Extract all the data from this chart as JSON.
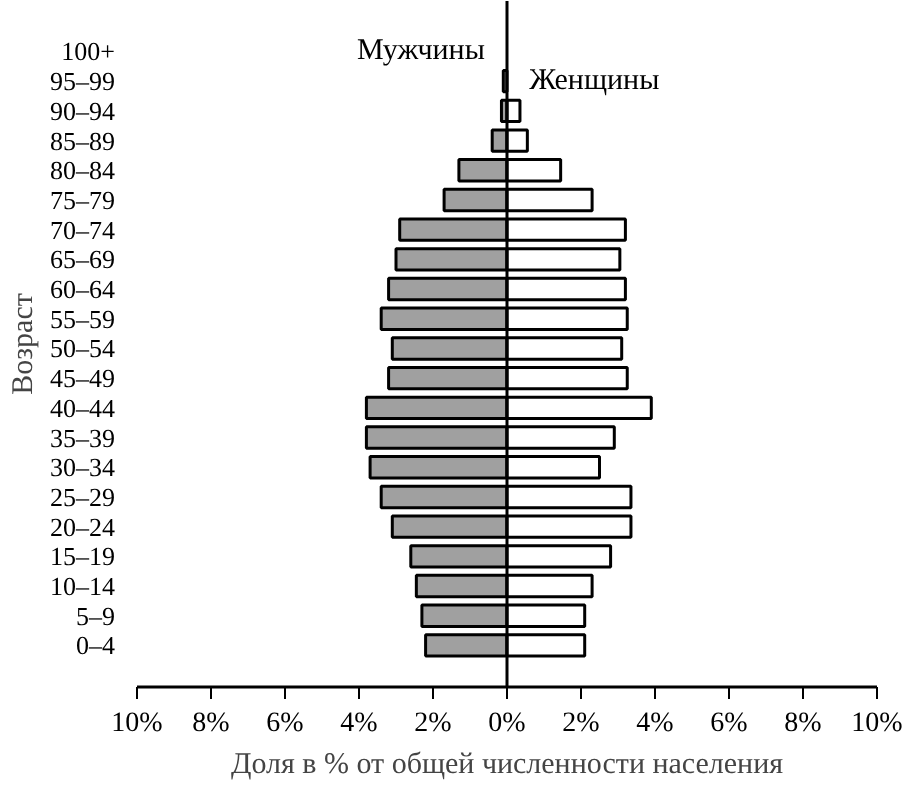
{
  "chart_data": {
    "type": "bar",
    "orientation": "horizontal",
    "stacked": true,
    "xlabel": "Доля в % от общей численности населения",
    "ylabel": "Возраст",
    "categories": [
      "100+",
      "95–99",
      "90–94",
      "85–89",
      "80–84",
      "75–79",
      "70–74",
      "65–69",
      "60–64",
      "55–59",
      "50–54",
      "45–49",
      "40–44",
      "35–39",
      "30–34",
      "25–29",
      "20–24",
      "15–19",
      "10–14",
      "5–9",
      "0–4"
    ],
    "series": [
      {
        "name": "Мужчины",
        "color": "#a0a0a0",
        "values": [
          null,
          -0.1,
          -0.15,
          -0.4,
          -1.3,
          -1.7,
          -2.9,
          -3.0,
          -3.2,
          -3.4,
          -3.1,
          -3.2,
          -3.8,
          -3.8,
          -3.7,
          -3.4,
          -3.1,
          -2.6,
          -2.45,
          -2.3,
          -2.2
        ]
      },
      {
        "name": "Женщины",
        "color": "#ffffff",
        "values": [
          null,
          null,
          0.35,
          0.55,
          1.45,
          2.3,
          3.2,
          3.05,
          3.2,
          3.25,
          3.1,
          3.25,
          3.9,
          2.9,
          2.5,
          3.35,
          3.35,
          2.8,
          2.3,
          2.1,
          2.1
        ]
      }
    ],
    "xlim": [
      -10,
      10
    ],
    "xticks": [
      {
        "value": -10,
        "label": "10%"
      },
      {
        "value": -8,
        "label": "8%"
      },
      {
        "value": -6,
        "label": "6%"
      },
      {
        "value": -4,
        "label": "4%"
      },
      {
        "value": -2,
        "label": "2%"
      },
      {
        "value": 0,
        "label": "0%"
      },
      {
        "value": 2,
        "label": "2%"
      },
      {
        "value": 4,
        "label": "4%"
      },
      {
        "value": 6,
        "label": "6%"
      },
      {
        "value": 8,
        "label": "8%"
      },
      {
        "value": 10,
        "label": "10%"
      }
    ],
    "ref_lines": [
      {
        "axis": "x",
        "value": 0
      }
    ],
    "grid": false,
    "legend": false
  }
}
